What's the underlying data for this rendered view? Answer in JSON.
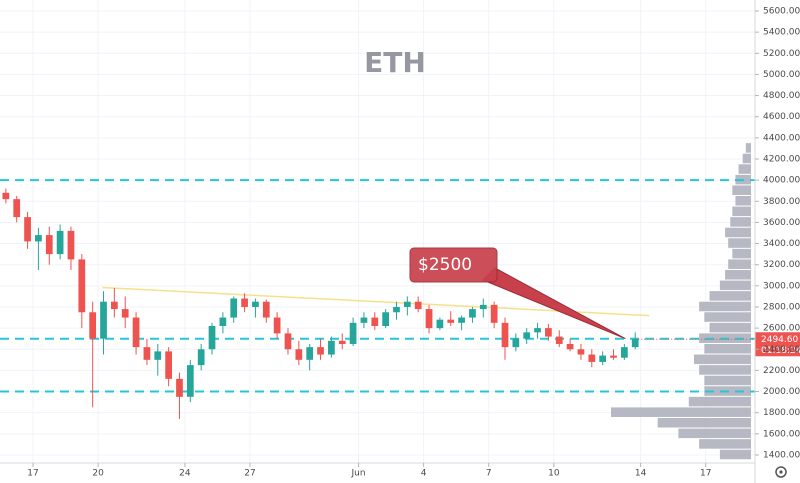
{
  "chart_data": {
    "type": "candlestick",
    "title": "ETH",
    "xlim": [
      15.48,
      50.27
    ],
    "ylim": [
      1324,
      5704
    ],
    "xticks": [
      17,
      20,
      24,
      27,
      {
        "value": 32,
        "label": "Jun"
      },
      {
        "value": 35,
        "label": "4"
      },
      {
        "value": 38,
        "label": "7"
      },
      {
        "value": 41,
        "label": "10"
      },
      {
        "value": 45,
        "label": "14"
      },
      {
        "value": 48,
        "label": "17"
      }
    ],
    "yticks": [
      {
        "value": 1400,
        "label": "1400.00"
      },
      {
        "value": 1600,
        "label": "1600.00"
      },
      {
        "value": 1800,
        "label": "1800.00"
      },
      {
        "value": 2000,
        "label": "2000.00"
      },
      {
        "value": 2200,
        "label": "2200.00"
      },
      {
        "value": 2400,
        "label": "2400.00"
      },
      {
        "value": 2600,
        "label": "2600.00"
      },
      {
        "value": 2800,
        "label": "2800.00"
      },
      {
        "value": 3000,
        "label": "3000.00"
      },
      {
        "value": 3200,
        "label": "3200.00"
      },
      {
        "value": 3400,
        "label": "3400.00"
      },
      {
        "value": 3600,
        "label": "3600.00"
      },
      {
        "value": 3800,
        "label": "3800.00"
      },
      {
        "value": 4000,
        "label": "4000.00"
      },
      {
        "value": 4200,
        "label": "4200.00"
      },
      {
        "value": 4400,
        "label": "4400.00"
      },
      {
        "value": 4600,
        "label": "4600.00"
      },
      {
        "value": 4800,
        "label": "4800.00"
      },
      {
        "value": 5000,
        "label": "5000.00"
      },
      {
        "value": 5200,
        "label": "5200.00"
      },
      {
        "value": 5400,
        "label": "5400.00"
      },
      {
        "value": 5600,
        "label": "5600.00"
      }
    ],
    "grid": true,
    "up_color": "#26a69a",
    "down_color": "#ef5350",
    "x": [
      15.75,
      16.25,
      16.75,
      17.25,
      17.75,
      18.25,
      18.75,
      19.25,
      19.75,
      20.25,
      20.75,
      21.25,
      21.75,
      22.25,
      22.75,
      23.25,
      23.75,
      24.25,
      24.75,
      25.25,
      25.75,
      26.25,
      26.75,
      27.25,
      27.75,
      28.25,
      28.75,
      29.25,
      29.75,
      30.25,
      30.75,
      31.25,
      31.75,
      32.25,
      32.75,
      33.25,
      33.75,
      34.25,
      34.75,
      35.25,
      35.75,
      36.25,
      36.75,
      37.25,
      37.75,
      38.25,
      38.75,
      39.25,
      39.75,
      40.25,
      40.75,
      41.25,
      41.75,
      42.25,
      42.75,
      43.25,
      43.75,
      44.25,
      44.75
    ],
    "open": [
      3880,
      3820,
      3650,
      3420,
      3480,
      3300,
      3520,
      3250,
      2750,
      2500,
      2850,
      2780,
      2700,
      2420,
      2300,
      2380,
      2120,
      1950,
      2250,
      2400,
      2620,
      2700,
      2880,
      2800,
      2850,
      2700,
      2550,
      2400,
      2300,
      2420,
      2350,
      2480,
      2450,
      2650,
      2700,
      2620,
      2750,
      2800,
      2850,
      2780,
      2600,
      2680,
      2650,
      2700,
      2780,
      2820,
      2650,
      2420,
      2500,
      2560,
      2600,
      2520,
      2450,
      2400,
      2350,
      2280,
      2340,
      2320,
      2420
    ],
    "high": [
      3920,
      3850,
      3700,
      3550,
      3560,
      3580,
      3560,
      3300,
      2850,
      2950,
      2980,
      2900,
      2750,
      2500,
      2450,
      2420,
      2180,
      2300,
      2450,
      2650,
      2750,
      2900,
      2930,
      2880,
      2870,
      2750,
      2600,
      2480,
      2450,
      2500,
      2520,
      2550,
      2700,
      2750,
      2750,
      2780,
      2850,
      2900,
      2900,
      2820,
      2700,
      2760,
      2720,
      2800,
      2880,
      2850,
      2700,
      2550,
      2600,
      2650,
      2640,
      2580,
      2500,
      2450,
      2400,
      2380,
      2400,
      2450,
      2560
    ],
    "low": [
      3780,
      3600,
      3350,
      3150,
      3200,
      3250,
      3150,
      2600,
      1850,
      2350,
      2700,
      2600,
      2350,
      2250,
      2150,
      2050,
      1740,
      1900,
      2200,
      2350,
      2550,
      2650,
      2750,
      2700,
      2650,
      2500,
      2350,
      2250,
      2200,
      2300,
      2320,
      2400,
      2430,
      2600,
      2580,
      2600,
      2680,
      2720,
      2750,
      2550,
      2580,
      2620,
      2580,
      2650,
      2700,
      2600,
      2300,
      2380,
      2450,
      2500,
      2480,
      2420,
      2380,
      2300,
      2230,
      2250,
      2300,
      2300,
      2400
    ],
    "close": [
      3820,
      3650,
      3420,
      3480,
      3300,
      3520,
      3250,
      2750,
      2500,
      2850,
      2780,
      2700,
      2420,
      2300,
      2380,
      2120,
      1950,
      2250,
      2400,
      2620,
      2700,
      2880,
      2800,
      2850,
      2700,
      2550,
      2400,
      2300,
      2420,
      2350,
      2480,
      2450,
      2650,
      2700,
      2620,
      2750,
      2800,
      2850,
      2780,
      2600,
      2680,
      2650,
      2700,
      2780,
      2820,
      2650,
      2420,
      2500,
      2560,
      2600,
      2520,
      2450,
      2400,
      2350,
      2280,
      2340,
      2320,
      2420,
      2495
    ],
    "levels": [
      4000,
      2500,
      2000
    ],
    "level_color": "#26c6da",
    "trendline": {
      "x": [
        20.2,
        45.4
      ],
      "y": [
        2984,
        2718
      ],
      "color": "#f7e08a"
    },
    "annotation": {
      "text": "$2500",
      "x": 44.3,
      "y": 2500,
      "color": "#c8404c"
    },
    "last_price": {
      "value": 2494.6,
      "label": "2494.60"
    },
    "countdown": "01:18:24",
    "volume_profile": {
      "prices": [
        1400,
        1500,
        1600,
        1700,
        1800,
        1900,
        2000,
        2100,
        2200,
        2300,
        2400,
        2500,
        2600,
        2700,
        2800,
        2900,
        3000,
        3100,
        3200,
        3300,
        3400,
        3500,
        3600,
        3700,
        3800,
        3900,
        4000,
        4100,
        4200,
        4300
      ],
      "volumes": [
        30,
        50,
        70,
        90,
        135,
        60,
        45,
        45,
        50,
        55,
        45,
        50,
        40,
        45,
        50,
        40,
        30,
        25,
        22,
        18,
        22,
        25,
        20,
        18,
        15,
        18,
        15,
        12,
        8,
        5
      ],
      "color": "#a9adb8"
    }
  }
}
